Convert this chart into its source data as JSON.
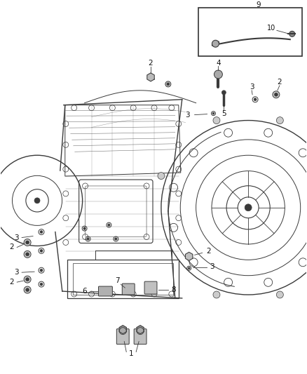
{
  "background_color": "#ffffff",
  "figure_width": 4.38,
  "figure_height": 5.33,
  "dpi": 100
}
